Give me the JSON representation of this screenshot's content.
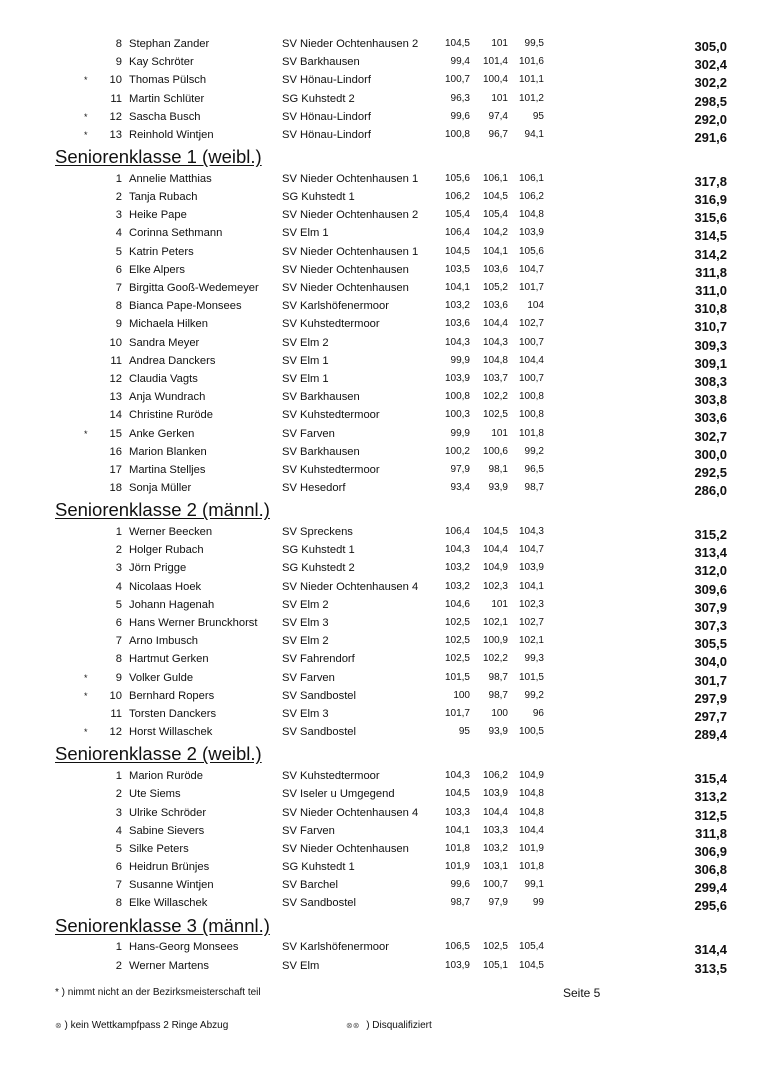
{
  "blocks": [
    {
      "heading": "",
      "rows": [
        {
          "star": "",
          "rank": "8",
          "name": "Stephan  Zander",
          "club": "SV Nieder Ochtenhausen  2",
          "s1": "104,5",
          "s2": "101",
          "s3": "99,5",
          "total": "305,0"
        },
        {
          "star": "",
          "rank": "9",
          "name": "Kay  Schröter",
          "club": "SV Barkhausen",
          "s1": "99,4",
          "s2": "101,4",
          "s3": "101,6",
          "total": "302,4"
        },
        {
          "star": "*",
          "rank": "10",
          "name": "Thomas  Pülsch",
          "club": "SV Hönau-Lindorf",
          "s1": "100,7",
          "s2": "100,4",
          "s3": "101,1",
          "total": "302,2"
        },
        {
          "star": "",
          "rank": "11",
          "name": "Martin  Schlüter",
          "club": "SG Kuhstedt  2",
          "s1": "96,3",
          "s2": "101",
          "s3": "101,2",
          "total": "298,5"
        },
        {
          "star": "*",
          "rank": "12",
          "name": "Sascha  Busch",
          "club": "SV Hönau-Lindorf",
          "s1": "99,6",
          "s2": "97,4",
          "s3": "95",
          "total": "292,0"
        },
        {
          "star": "*",
          "rank": "13",
          "name": "Reinhold  Wintjen",
          "club": "SV Hönau-Lindorf",
          "s1": "100,8",
          "s2": "96,7",
          "s3": "94,1",
          "total": "291,6"
        }
      ]
    },
    {
      "heading": "Seniorenklasse 1 (weibl.)",
      "rows": [
        {
          "star": "",
          "rank": "1",
          "name": "Annelie  Matthias",
          "club": "SV Nieder Ochtenhausen  1",
          "s1": "105,6",
          "s2": "106,1",
          "s3": "106,1",
          "total": "317,8"
        },
        {
          "star": "",
          "rank": "2",
          "name": "Tanja  Rubach",
          "club": "SG Kuhstedt  1",
          "s1": "106,2",
          "s2": "104,5",
          "s3": "106,2",
          "total": "316,9"
        },
        {
          "star": "",
          "rank": "3",
          "name": "Heike  Pape",
          "club": "SV Nieder Ochtenhausen  2",
          "s1": "105,4",
          "s2": "105,4",
          "s3": "104,8",
          "total": "315,6"
        },
        {
          "star": "",
          "rank": "4",
          "name": "Corinna  Sethmann",
          "club": "SV Elm  1",
          "s1": "106,4",
          "s2": "104,2",
          "s3": "103,9",
          "total": "314,5"
        },
        {
          "star": "",
          "rank": "5",
          "name": "Katrin  Peters",
          "club": "SV Nieder Ochtenhausen  1",
          "s1": "104,5",
          "s2": "104,1",
          "s3": "105,6",
          "total": "314,2"
        },
        {
          "star": "",
          "rank": "6",
          "name": "Elke  Alpers",
          "club": "SV Nieder Ochtenhausen",
          "s1": "103,5",
          "s2": "103,6",
          "s3": "104,7",
          "total": "311,8"
        },
        {
          "star": "",
          "rank": "7",
          "name": "Birgitta  Gooß-Wedemeyer",
          "club": "SV Nieder Ochtenhausen",
          "s1": "104,1",
          "s2": "105,2",
          "s3": "101,7",
          "total": "311,0"
        },
        {
          "star": "",
          "rank": "8",
          "name": "Bianca  Pape-Monsees",
          "club": "SV Karlshöfenermoor",
          "s1": "103,2",
          "s2": "103,6",
          "s3": "104",
          "total": "310,8"
        },
        {
          "star": "",
          "rank": "9",
          "name": "Michaela  Hilken",
          "club": "SV Kuhstedtermoor",
          "s1": "103,6",
          "s2": "104,4",
          "s3": "102,7",
          "total": "310,7"
        },
        {
          "star": "",
          "rank": "10",
          "name": "Sandra  Meyer",
          "club": "SV Elm  2",
          "s1": "104,3",
          "s2": "104,3",
          "s3": "100,7",
          "total": "309,3"
        },
        {
          "star": "",
          "rank": "11",
          "name": "Andrea  Danckers",
          "club": "SV Elm  1",
          "s1": "99,9",
          "s2": "104,8",
          "s3": "104,4",
          "total": "309,1"
        },
        {
          "star": "",
          "rank": "12",
          "name": "Claudia  Vagts",
          "club": "SV Elm  1",
          "s1": "103,9",
          "s2": "103,7",
          "s3": "100,7",
          "total": "308,3"
        },
        {
          "star": "",
          "rank": "13",
          "name": "Anja  Wundrach",
          "club": "SV Barkhausen",
          "s1": "100,8",
          "s2": "102,2",
          "s3": "100,8",
          "total": "303,8"
        },
        {
          "star": "",
          "rank": "14",
          "name": "Christine  Ruröde",
          "club": "SV Kuhstedtermoor",
          "s1": "100,3",
          "s2": "102,5",
          "s3": "100,8",
          "total": "303,6"
        },
        {
          "star": "*",
          "rank": "15",
          "name": "Anke  Gerken",
          "club": "SV Farven",
          "s1": "99,9",
          "s2": "101",
          "s3": "101,8",
          "total": "302,7"
        },
        {
          "star": "",
          "rank": "16",
          "name": "Marion  Blanken",
          "club": "SV Barkhausen",
          "s1": "100,2",
          "s2": "100,6",
          "s3": "99,2",
          "total": "300,0"
        },
        {
          "star": "",
          "rank": "17",
          "name": "Martina  Stelljes",
          "club": "SV Kuhstedtermoor",
          "s1": "97,9",
          "s2": "98,1",
          "s3": "96,5",
          "total": "292,5"
        },
        {
          "star": "",
          "rank": "18",
          "name": "Sonja  Müller",
          "club": "SV Hesedorf",
          "s1": "93,4",
          "s2": "93,9",
          "s3": "98,7",
          "total": "286,0"
        }
      ]
    },
    {
      "heading": "Seniorenklasse 2 (männl.)",
      "rows": [
        {
          "star": "",
          "rank": "1",
          "name": "Werner  Beecken",
          "club": "SV Spreckens",
          "s1": "106,4",
          "s2": "104,5",
          "s3": "104,3",
          "total": "315,2"
        },
        {
          "star": "",
          "rank": "2",
          "name": "Holger  Rubach",
          "club": "SG Kuhstedt  1",
          "s1": "104,3",
          "s2": "104,4",
          "s3": "104,7",
          "total": "313,4"
        },
        {
          "star": "",
          "rank": "3",
          "name": "Jörn  Prigge",
          "club": "SG Kuhstedt  2",
          "s1": "103,2",
          "s2": "104,9",
          "s3": "103,9",
          "total": "312,0"
        },
        {
          "star": "",
          "rank": "4",
          "name": "Nicolaas  Hoek",
          "club": "SV Nieder Ochtenhausen  4",
          "s1": "103,2",
          "s2": "102,3",
          "s3": "104,1",
          "total": "309,6"
        },
        {
          "star": "",
          "rank": "5",
          "name": "Johann  Hagenah",
          "club": "SV Elm  2",
          "s1": "104,6",
          "s2": "101",
          "s3": "102,3",
          "total": "307,9"
        },
        {
          "star": "",
          "rank": "6",
          "name": "Hans Werner  Brunckhorst",
          "club": "SV Elm  3",
          "s1": "102,5",
          "s2": "102,1",
          "s3": "102,7",
          "total": "307,3"
        },
        {
          "star": "",
          "rank": "7",
          "name": "Arno  Imbusch",
          "club": "SV Elm  2",
          "s1": "102,5",
          "s2": "100,9",
          "s3": "102,1",
          "total": "305,5"
        },
        {
          "star": "",
          "rank": "8",
          "name": "Hartmut  Gerken",
          "club": "SV Fahrendorf",
          "s1": "102,5",
          "s2": "102,2",
          "s3": "99,3",
          "total": "304,0"
        },
        {
          "star": "*",
          "rank": "9",
          "name": "Volker  Gulde",
          "club": "SV Farven",
          "s1": "101,5",
          "s2": "98,7",
          "s3": "101,5",
          "total": "301,7"
        },
        {
          "star": "*",
          "rank": "10",
          "name": "Bernhard  Ropers",
          "club": "SV Sandbostel",
          "s1": "100",
          "s2": "98,7",
          "s3": "99,2",
          "total": "297,9"
        },
        {
          "star": "",
          "rank": "11",
          "name": "Torsten  Danckers",
          "club": "SV Elm  3",
          "s1": "101,7",
          "s2": "100",
          "s3": "96",
          "total": "297,7"
        },
        {
          "star": "*",
          "rank": "12",
          "name": "Horst  Willaschek",
          "club": "SV Sandbostel",
          "s1": "95",
          "s2": "93,9",
          "s3": "100,5",
          "total": "289,4"
        }
      ]
    },
    {
      "heading": "Seniorenklasse 2 (weibl.)",
      "rows": [
        {
          "star": "",
          "rank": "1",
          "name": "Marion  Ruröde",
          "club": "SV Kuhstedtermoor",
          "s1": "104,3",
          "s2": "106,2",
          "s3": "104,9",
          "total": "315,4"
        },
        {
          "star": "",
          "rank": "2",
          "name": "Ute  Siems",
          "club": "SV Iseler u Umgegend",
          "s1": "104,5",
          "s2": "103,9",
          "s3": "104,8",
          "total": "313,2"
        },
        {
          "star": "",
          "rank": "3",
          "name": "Ulrike  Schröder",
          "club": "SV Nieder Ochtenhausen  4",
          "s1": "103,3",
          "s2": "104,4",
          "s3": "104,8",
          "total": "312,5"
        },
        {
          "star": "",
          "rank": "4",
          "name": "Sabine  Sievers",
          "club": "SV Farven",
          "s1": "104,1",
          "s2": "103,3",
          "s3": "104,4",
          "total": "311,8"
        },
        {
          "star": "",
          "rank": "5",
          "name": "Silke  Peters",
          "club": "SV Nieder Ochtenhausen",
          "s1": "101,8",
          "s2": "103,2",
          "s3": "101,9",
          "total": "306,9"
        },
        {
          "star": "",
          "rank": "6",
          "name": "Heidrun  Brünjes",
          "club": "SG Kuhstedt  1",
          "s1": "101,9",
          "s2": "103,1",
          "s3": "101,8",
          "total": "306,8"
        },
        {
          "star": "",
          "rank": "7",
          "name": "Susanne  Wintjen",
          "club": "SV Barchel",
          "s1": "99,6",
          "s2": "100,7",
          "s3": "99,1",
          "total": "299,4"
        },
        {
          "star": "",
          "rank": "8",
          "name": "Elke  Willaschek",
          "club": "SV Sandbostel",
          "s1": "98,7",
          "s2": "97,9",
          "s3": "99",
          "total": "295,6"
        }
      ]
    },
    {
      "heading": "Seniorenklasse 3 (männl.)",
      "rows": [
        {
          "star": "",
          "rank": "1",
          "name": "Hans-Georg  Monsees",
          "club": "SV Karlshöfenermoor",
          "s1": "106,5",
          "s2": "102,5",
          "s3": "105,4",
          "total": "314,4"
        },
        {
          "star": "",
          "rank": "2",
          "name": "Werner  Martens",
          "club": "SV Elm",
          "s1": "103,9",
          "s2": "105,1",
          "s3": "104,5",
          "total": "313,5"
        }
      ]
    }
  ],
  "footer": {
    "note": "* ) nimmt nicht an der Bezirksmeisterschaft teil",
    "page": "Seite 5",
    "legend1": ") kein Wettkampfpass 2 Ringe Abzug",
    "legend2": ") Disqualifiziert"
  }
}
